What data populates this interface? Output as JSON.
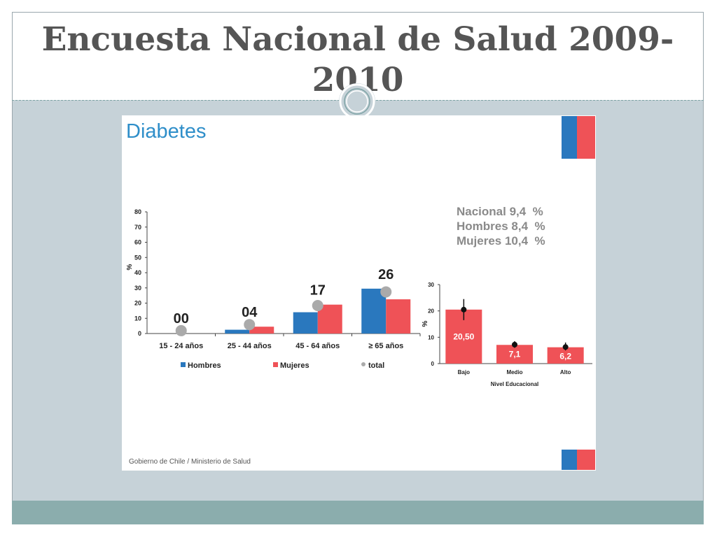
{
  "slide": {
    "title": "Encuesta Nacional de Salud 2009-2010",
    "panel_heading": "Diabetes",
    "footer_credit": "Gobierno de Chile / Ministerio de Salud",
    "stats": [
      "Nacional 9,4  %",
      "Hombres 8,4  %",
      "Mujeres 10,4  %"
    ]
  },
  "colors": {
    "hombres": "#2a78be",
    "mujeres": "#ef5257",
    "total": "#aaaaaa",
    "heading": "#2e8ec9",
    "band": "#8badad"
  },
  "chart_data": [
    {
      "type": "bar",
      "ylabel": "%",
      "ylim": [
        0,
        80
      ],
      "yticks": [
        0,
        10,
        20,
        30,
        40,
        50,
        60,
        70,
        80
      ],
      "categories": [
        "15 - 24 años",
        "25 - 44 años",
        "45 - 64 años",
        "≥ 65 años"
      ],
      "series": [
        {
          "name": "Hombres",
          "values": [
            0,
            2.5,
            14,
            29.5
          ]
        },
        {
          "name": "Mujeres",
          "values": [
            0,
            4.5,
            19,
            22.5
          ]
        },
        {
          "name": "total",
          "type": "scatter",
          "values": [
            0.5,
            4.5,
            17,
            26
          ]
        }
      ],
      "annotations": [
        "00",
        "04",
        "17",
        "26"
      ],
      "legend": "bottom",
      "grid": false
    },
    {
      "type": "bar",
      "xlabel": "Nivel Educacional",
      "ylabel": "%",
      "ylim": [
        0,
        30
      ],
      "yticks": [
        0,
        10,
        20,
        30
      ],
      "categories": [
        "Bajo",
        "Medio",
        "Alto"
      ],
      "values": [
        20.5,
        7.1,
        6.2
      ],
      "data_labels": [
        "20,50",
        "7,1",
        "6,2"
      ],
      "point_estimates": [
        20.5,
        7.2,
        6.3
      ],
      "error_low": [
        16.5,
        6.0,
        5.0
      ],
      "error_high": [
        24.5,
        8.5,
        8.0
      ],
      "grid": false
    }
  ]
}
